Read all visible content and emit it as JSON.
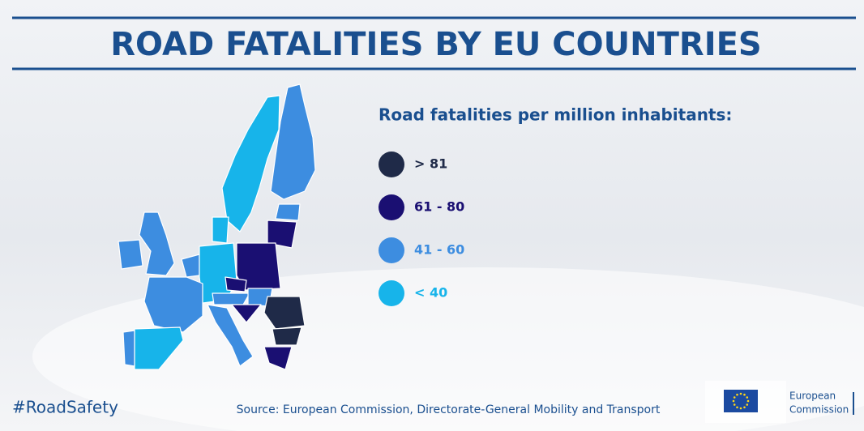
{
  "header": {
    "title": "ROAD FATALITIES BY EU COUNTRIES"
  },
  "legend": {
    "title": "Road fatalities per million inhabitants:",
    "items": [
      {
        "label": "> 81",
        "color": "#1f2a48"
      },
      {
        "label": "61 - 80",
        "color": "#1a0f72"
      },
      {
        "label": "41 - 60",
        "color": "#3d8de0"
      },
      {
        "label": "< 40",
        "color": "#17b4ea"
      }
    ]
  },
  "footer": {
    "hashtag": "#RoadSafety",
    "source": "Source: European Commission, Directorate-General Mobility and Transport",
    "logo": [
      "European",
      "Commission"
    ]
  }
}
